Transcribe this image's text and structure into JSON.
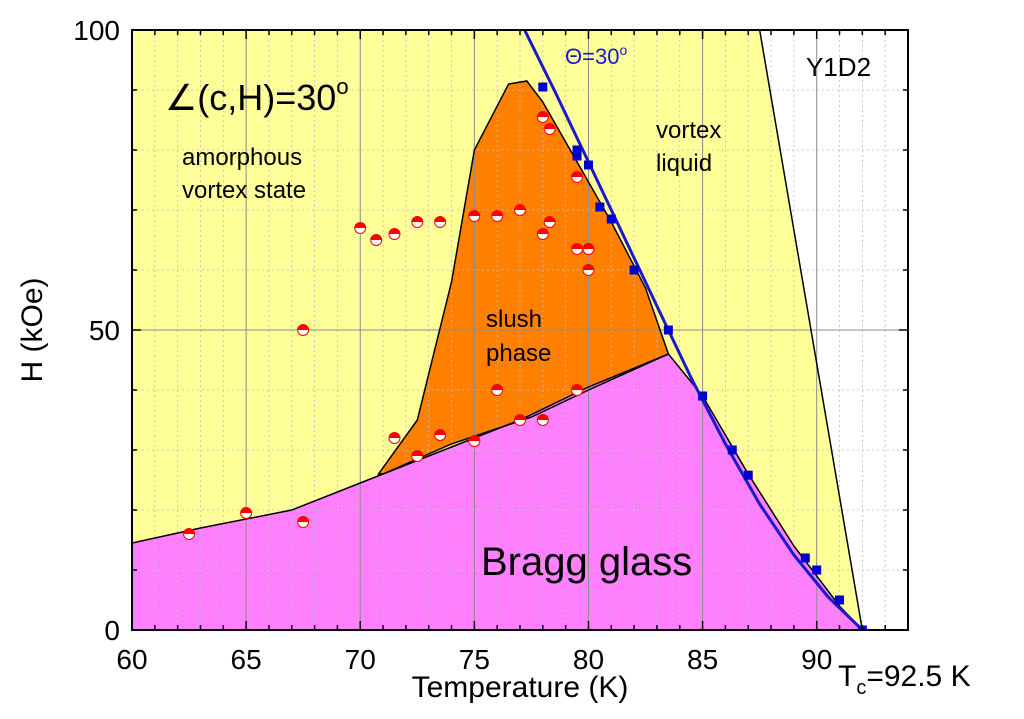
{
  "chart_data": {
    "type": "scatter",
    "xlabel": "Temperature (K)",
    "ylabel": "H (kOe)",
    "xlim": [
      60,
      94
    ],
    "ylim": [
      0,
      100
    ],
    "x_ticks": [
      60,
      65,
      70,
      75,
      80,
      85,
      90
    ],
    "x_tick_labels": [
      "60",
      "65",
      "70",
      "75",
      "80",
      "85",
      "90"
    ],
    "y_ticks": [
      0,
      50,
      100
    ],
    "y_tick_labels": [
      "0",
      "50",
      "100"
    ],
    "grid": true,
    "annotations": {
      "angle": "∠(c,H)=30",
      "angle_sup": "o",
      "theta": "Θ=30",
      "theta_sup": "o",
      "sample": "Y1D2",
      "amorphous": [
        "amorphous",
        "vortex state"
      ],
      "vortex_liquid": [
        "vortex",
        "liquid"
      ],
      "slush": [
        "slush",
        "phase"
      ],
      "bragg": "Bragg glass",
      "tc_T": "T",
      "tc_sub": "c",
      "tc_value": "=92.5 K"
    },
    "regions": {
      "amorphous_color": "#ffff00",
      "liquid_color": "#ffff99",
      "slush_color": "#ff7f00",
      "bragg_color": "#ff80ff",
      "liquid_boundary": [
        [
          87.5,
          100
        ],
        [
          92,
          0
        ]
      ],
      "slush_boundary": [
        [
          70.8,
          26
        ],
        [
          72.5,
          35
        ],
        [
          74,
          58
        ],
        [
          75,
          80
        ],
        [
          76.5,
          91
        ],
        [
          77.3,
          91.5
        ],
        [
          78,
          88
        ],
        [
          79.5,
          78
        ],
        [
          81,
          68
        ],
        [
          82.5,
          57
        ],
        [
          83.5,
          46
        ],
        [
          80,
          40
        ],
        [
          77.5,
          35.5
        ],
        [
          74,
          31
        ],
        [
          71,
          26
        ]
      ],
      "bragg_boundary": [
        [
          60,
          14.5
        ],
        [
          63,
          17
        ],
        [
          67,
          20
        ],
        [
          70,
          24.5
        ],
        [
          74,
          30.5
        ],
        [
          77,
          35
        ],
        [
          80,
          40.5
        ],
        [
          83.5,
          46
        ],
        [
          85,
          39
        ],
        [
          87,
          26
        ],
        [
          89,
          14
        ],
        [
          91,
          4
        ],
        [
          92,
          0
        ],
        [
          60,
          0
        ]
      ]
    },
    "series": [
      {
        "name": "",
        "marker": "half-filled circle",
        "color": "#ff0000",
        "points": [
          [
            62.5,
            16
          ],
          [
            65,
            19.5
          ],
          [
            67.5,
            18
          ],
          [
            67.5,
            50
          ],
          [
            70,
            67
          ],
          [
            70.7,
            65
          ],
          [
            71.5,
            66
          ],
          [
            71.5,
            32
          ],
          [
            72.5,
            68
          ],
          [
            72.5,
            29
          ],
          [
            73.5,
            68
          ],
          [
            73.5,
            32.5
          ],
          [
            75,
            69
          ],
          [
            75,
            31.5
          ],
          [
            76,
            69
          ],
          [
            76,
            40
          ],
          [
            77,
            70
          ],
          [
            77,
            35
          ],
          [
            78,
            66
          ],
          [
            78,
            35
          ],
          [
            78,
            85.5
          ],
          [
            78.3,
            83.5
          ],
          [
            78.3,
            68
          ],
          [
            79.5,
            75.5
          ],
          [
            79.5,
            63.5
          ],
          [
            79.5,
            40
          ],
          [
            80,
            63.5
          ],
          [
            80,
            60
          ]
        ]
      },
      {
        "name": "",
        "marker": "square",
        "color": "#0000cc",
        "points": [
          [
            78,
            90.5
          ],
          [
            79.5,
            80
          ],
          [
            79.5,
            79
          ],
          [
            80,
            77.5
          ],
          [
            80.5,
            70.5
          ],
          [
            81,
            68.5
          ],
          [
            82,
            60
          ],
          [
            83.5,
            50
          ],
          [
            85,
            39
          ],
          [
            86.3,
            30
          ],
          [
            87,
            25.8
          ],
          [
            89.5,
            12
          ],
          [
            90,
            10
          ],
          [
            91,
            5
          ],
          [
            92,
            0
          ]
        ]
      }
    ],
    "fit_line": {
      "color": "#1a1acc",
      "points": [
        [
          77.2,
          100
        ],
        [
          78.5,
          90
        ],
        [
          80,
          78
        ],
        [
          81.5,
          66
        ],
        [
          83,
          54
        ],
        [
          84.5,
          42
        ],
        [
          86,
          31
        ],
        [
          87.5,
          21
        ],
        [
          89,
          12.5
        ],
        [
          90.5,
          5.5
        ],
        [
          92,
          0
        ]
      ]
    }
  }
}
